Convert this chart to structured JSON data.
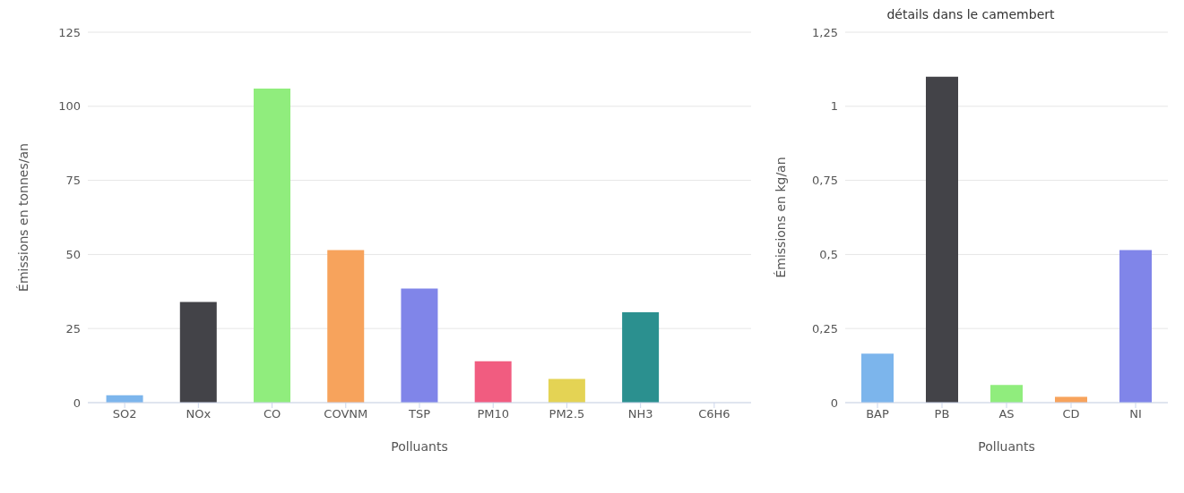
{
  "chart_data": [
    {
      "type": "bar",
      "categories": [
        "SO2",
        "NOx",
        "CO",
        "COVNM",
        "TSP",
        "PM10",
        "PM2.5",
        "NH3",
        "C6H6"
      ],
      "values": [
        2.5,
        34,
        106,
        51.5,
        38.5,
        14,
        8,
        30.5,
        0
      ],
      "colors": [
        "#7cb5ec",
        "#434348",
        "#90ed7d",
        "#f7a35c",
        "#8085e9",
        "#f15c80",
        "#e4d354",
        "#2b908f",
        "#f45b5b"
      ],
      "ylim": [
        0,
        125
      ],
      "yticks": [
        0,
        25,
        50,
        75,
        100,
        125
      ],
      "xlabel": "Polluants",
      "ylabel": "Émissions en tonnes/an",
      "grid": "y",
      "legend": false
    },
    {
      "type": "bar",
      "title": "détails dans le camembert",
      "categories": [
        "BAP",
        "PB",
        "AS",
        "CD",
        "NI"
      ],
      "values": [
        0.165,
        1.1,
        0.06,
        0.02,
        0.515
      ],
      "colors": [
        "#7cb5ec",
        "#434348",
        "#90ed7d",
        "#f7a35c",
        "#8085e9"
      ],
      "ylim": [
        0,
        1.25
      ],
      "yticks": [
        0,
        {
          "value": 0.25,
          "label": "0,25"
        },
        {
          "value": 0.5,
          "label": "0,5"
        },
        {
          "value": 0.75,
          "label": "0,75"
        },
        1,
        {
          "value": 1.25,
          "label": "1,25"
        }
      ],
      "xlabel": "Polluants",
      "ylabel": "Émissions en kg/an",
      "grid": "y",
      "legend": false
    }
  ]
}
